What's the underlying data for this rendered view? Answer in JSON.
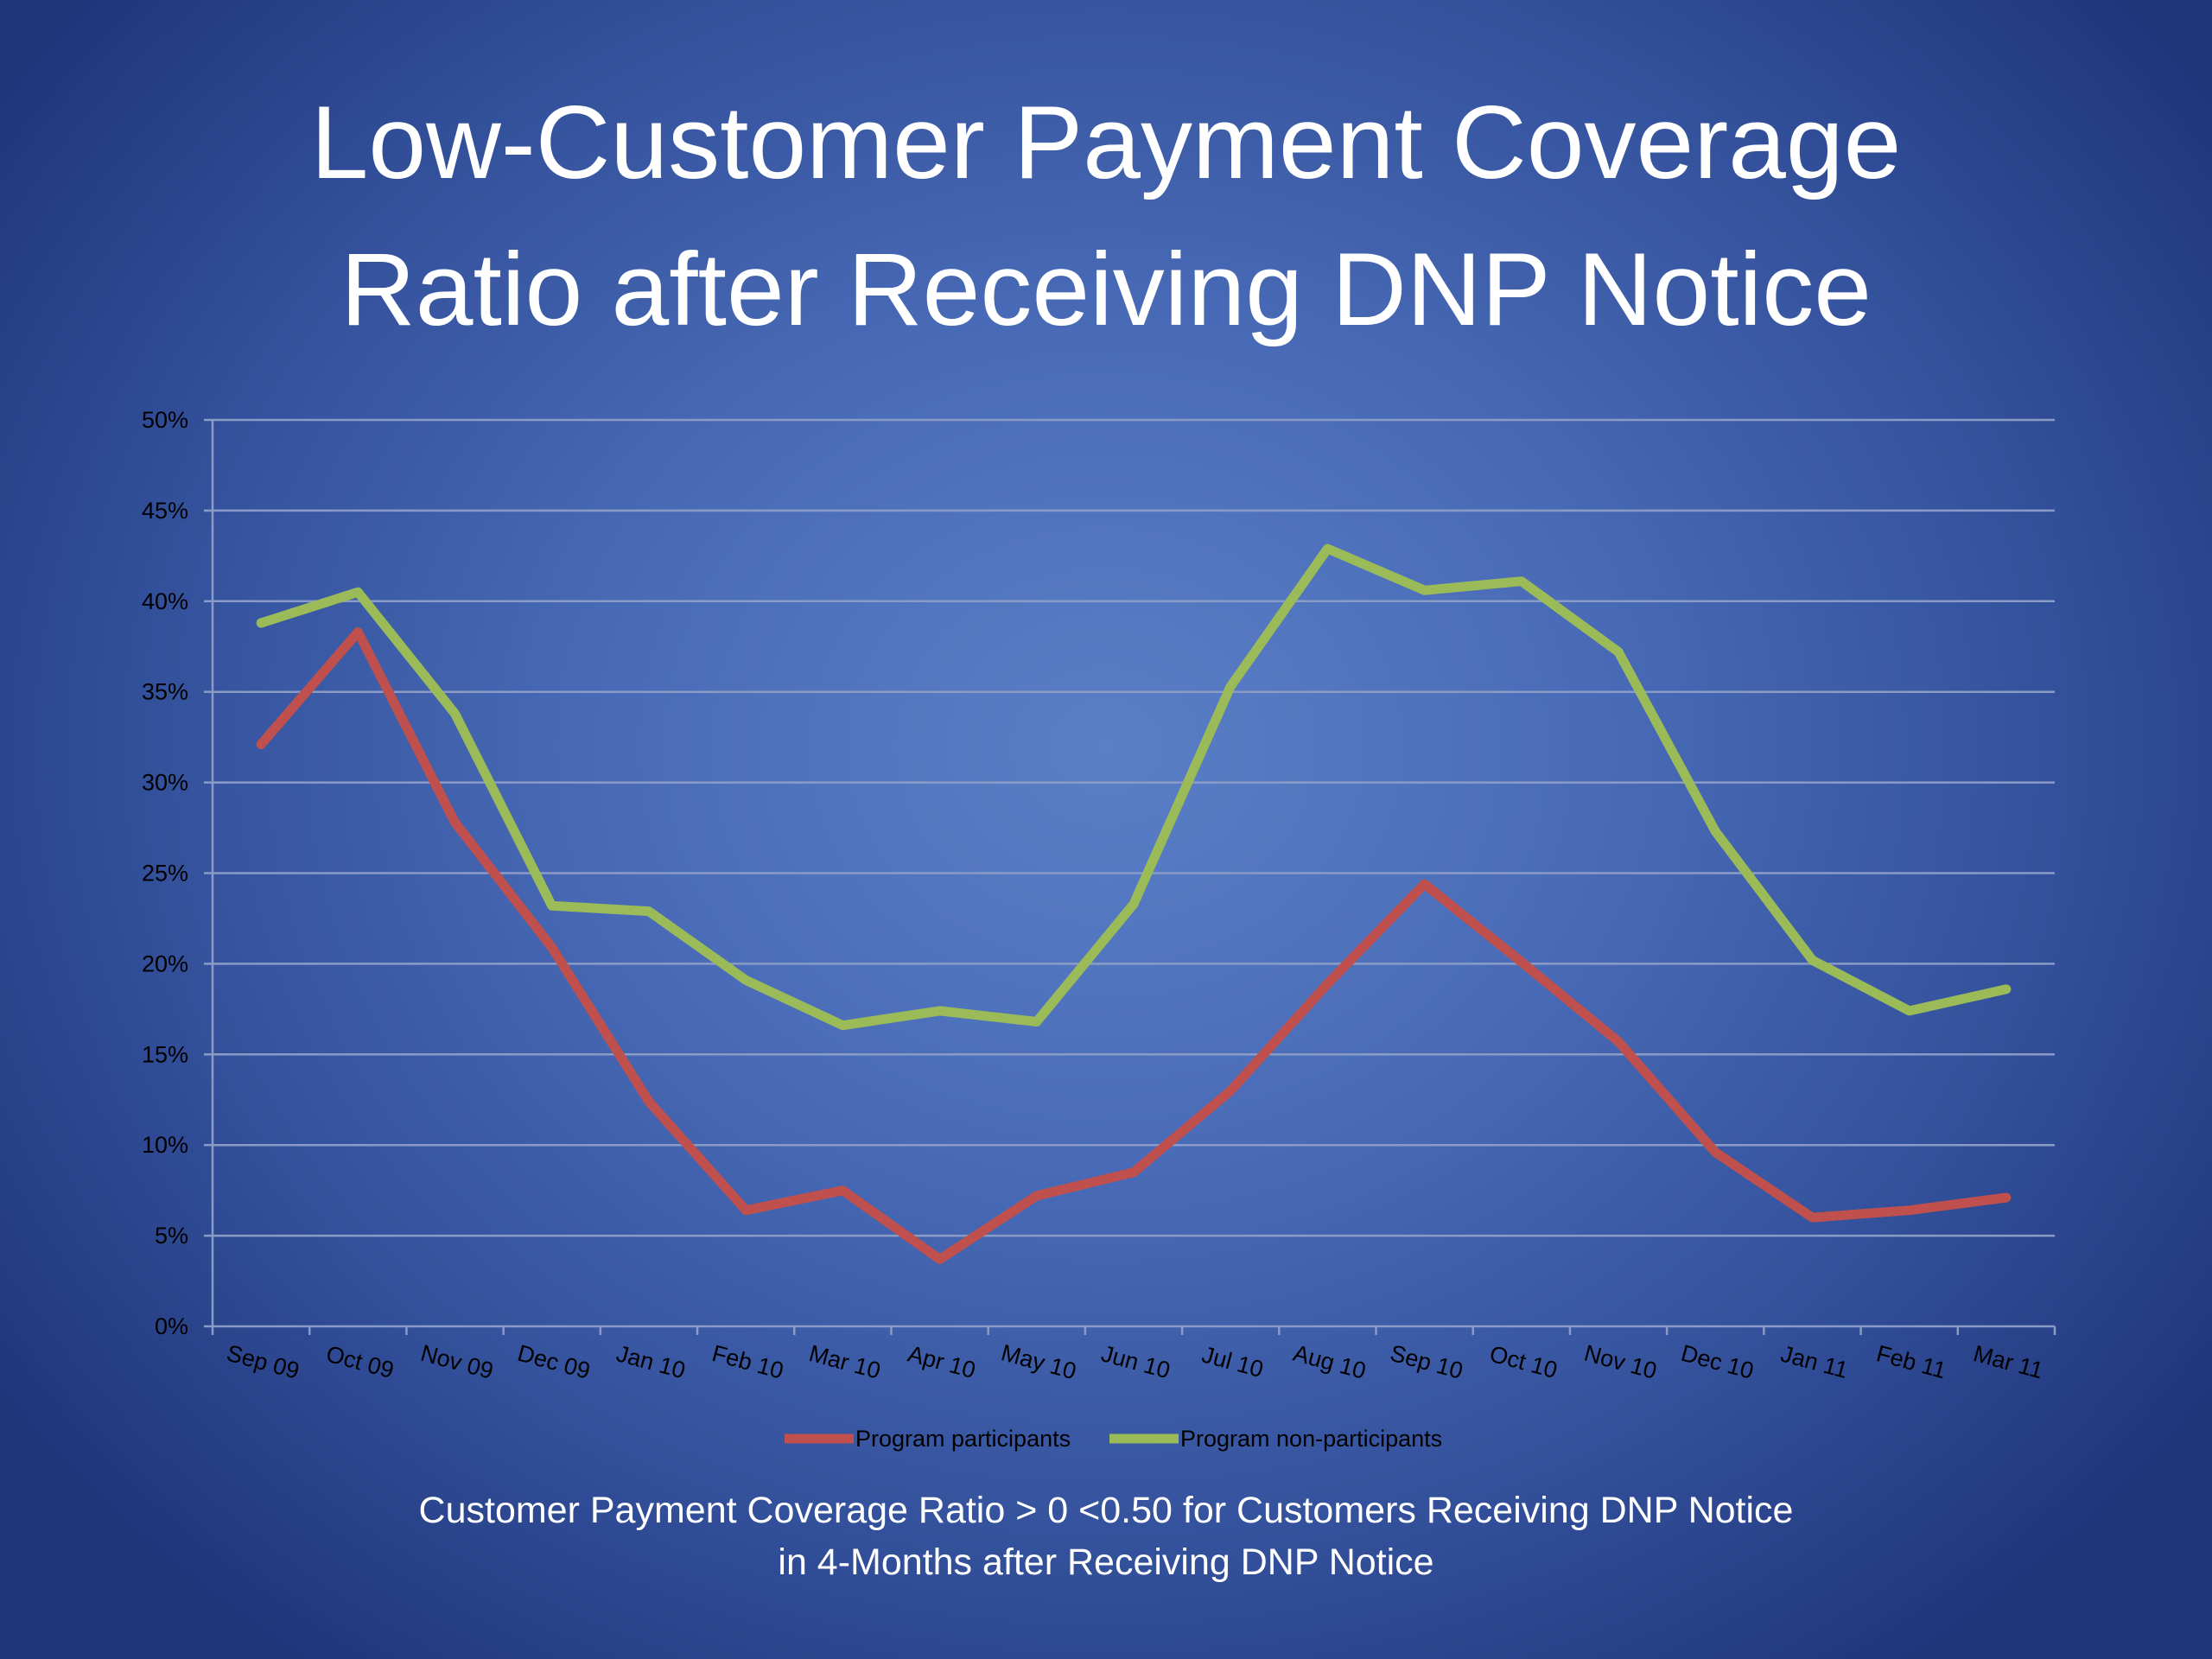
{
  "slide": {
    "title_line1": "Low-Customer Payment Coverage",
    "title_line2": "Ratio after Receiving DNP Notice",
    "caption_line1": "Customer Payment Coverage Ratio > 0 <0.50 for Customers Receiving DNP Notice",
    "caption_line2": "in 4-Months after Receiving DNP Notice"
  },
  "colors": {
    "background": "#4a6cb8",
    "participants": "#c0504d",
    "non_participants": "#9bbb59",
    "gridline": "#8a9cc6",
    "axis_text": "#000000"
  },
  "chart_data": {
    "type": "line",
    "title": "",
    "xlabel": "",
    "ylabel": "",
    "ylim": [
      0,
      50
    ],
    "yticks": [
      "0%",
      "5%",
      "10%",
      "15%",
      "20%",
      "25%",
      "30%",
      "35%",
      "40%",
      "45%",
      "50%"
    ],
    "grid": true,
    "legend_position": "bottom",
    "categories": [
      "Sep 09",
      "Oct 09",
      "Nov 09",
      "Dec 09",
      "Jan 10",
      "Feb 10",
      "Mar 10",
      "Apr 10",
      "May 10",
      "Jun 10",
      "Jul 10",
      "Aug 10",
      "Sep 10",
      "Oct 10",
      "Nov 10",
      "Dec 10",
      "Jan 11",
      "Feb 11",
      "Mar 11"
    ],
    "series": [
      {
        "name": "Program participants",
        "color": "#c0504d",
        "values": [
          32.1,
          38.3,
          27.8,
          20.9,
          12.4,
          6.4,
          7.5,
          3.7,
          7.2,
          8.5,
          13.0,
          18.9,
          24.4,
          20.1,
          15.7,
          9.6,
          6.0,
          6.4,
          7.1
        ]
      },
      {
        "name": "Program non-participants",
        "color": "#9bbb59",
        "values": [
          38.8,
          40.5,
          33.8,
          23.2,
          22.9,
          19.1,
          16.6,
          17.4,
          16.8,
          23.3,
          35.3,
          42.9,
          40.6,
          41.1,
          37.2,
          27.3,
          20.2,
          17.4,
          18.6
        ]
      }
    ]
  }
}
